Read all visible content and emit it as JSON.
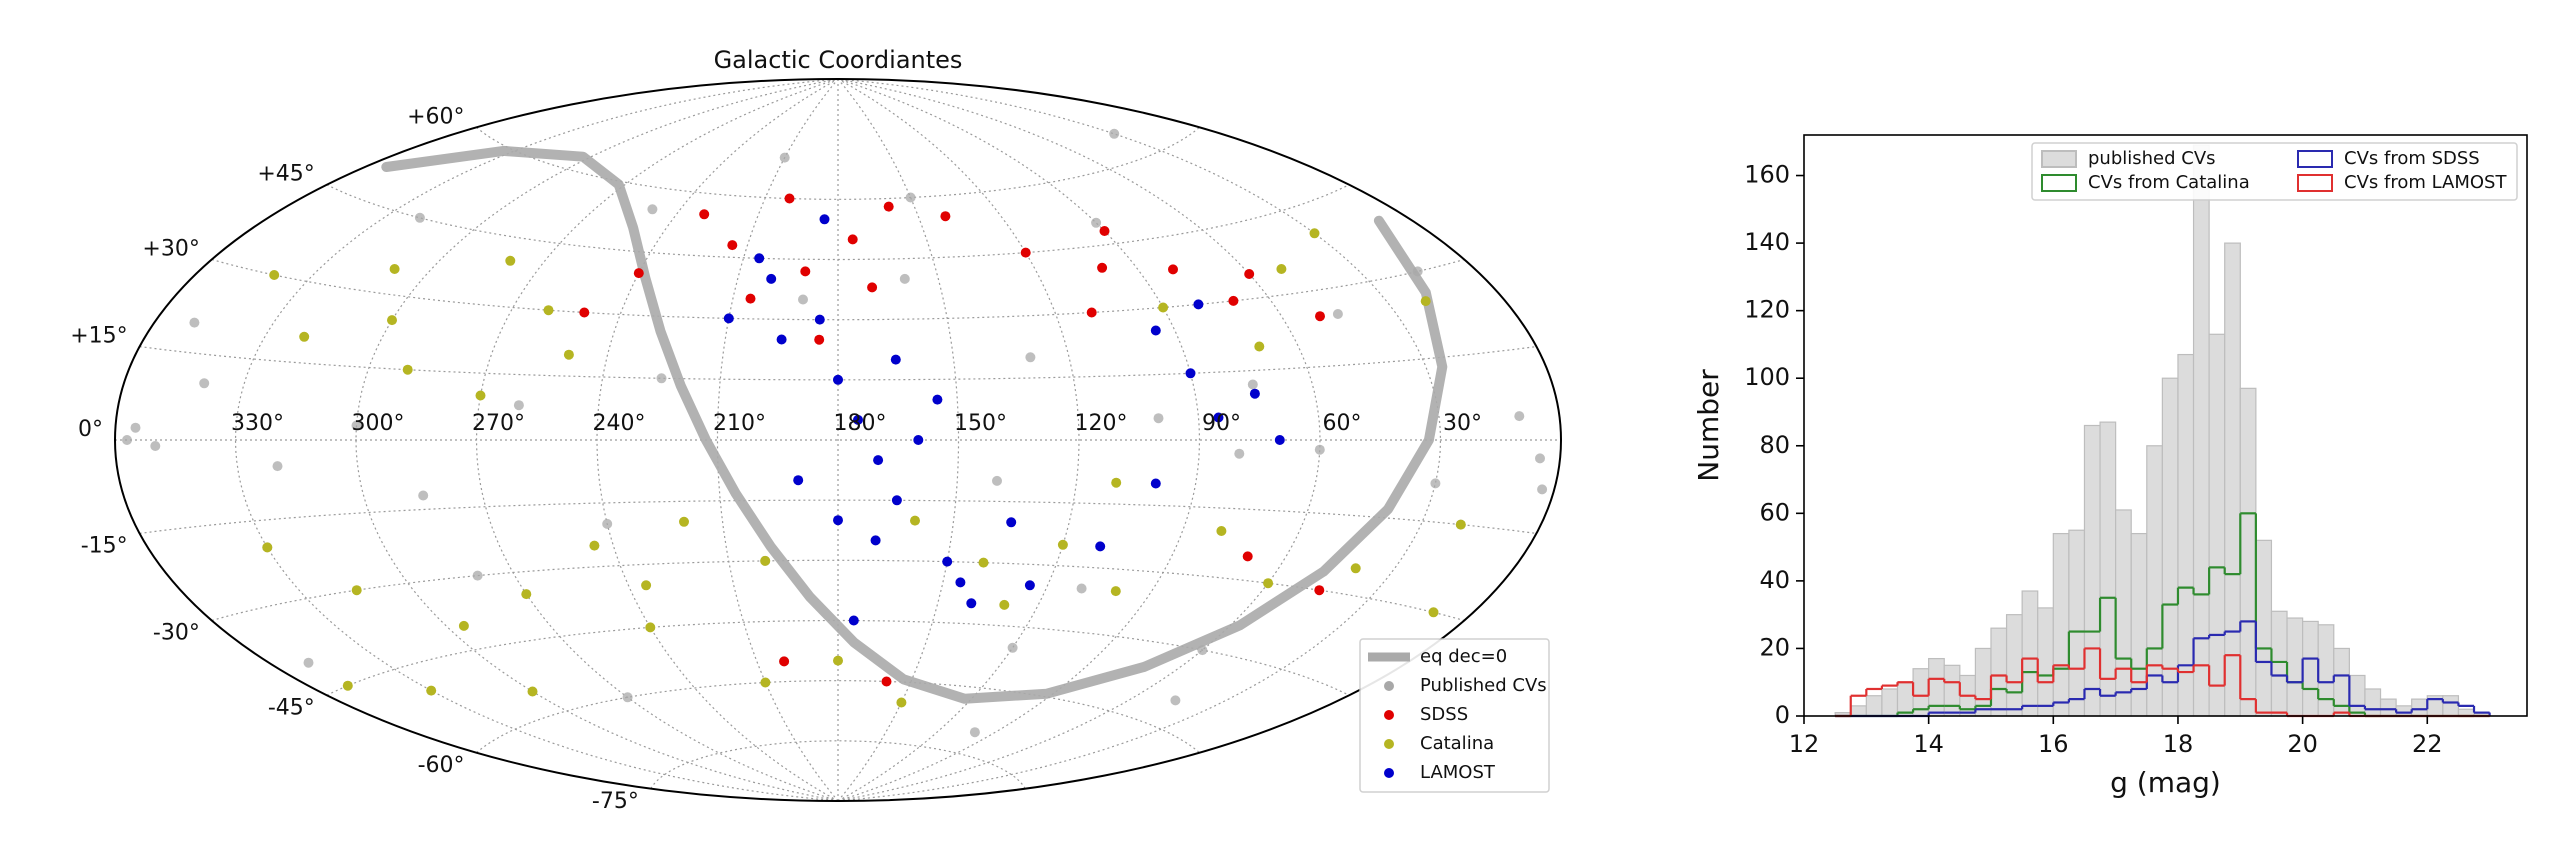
{
  "chart_data": [
    {
      "type": "scatter",
      "projection": "aitoff",
      "title": "Galactic Coordiantes",
      "grid": true,
      "legend": "lower right",
      "xticks": [
        {
          "value": 330,
          "label": "330°"
        },
        {
          "value": 300,
          "label": "300°"
        },
        {
          "value": 270,
          "label": "270°"
        },
        {
          "value": 240,
          "label": "240°"
        },
        {
          "value": 210,
          "label": "210°"
        },
        {
          "value": 180,
          "label": "180°"
        },
        {
          "value": 150,
          "label": "150°"
        },
        {
          "value": 120,
          "label": "120°"
        },
        {
          "value": 90,
          "label": "90°"
        },
        {
          "value": 60,
          "label": "60°"
        },
        {
          "value": 30,
          "label": "30°"
        }
      ],
      "yticks": [
        {
          "value": 60,
          "label": "+60°"
        },
        {
          "value": 45,
          "label": "+45°"
        },
        {
          "value": 30,
          "label": "+30°"
        },
        {
          "value": 15,
          "label": "+15°"
        },
        {
          "value": 0,
          "label": "0°"
        },
        {
          "value": -15,
          "label": "-15°"
        },
        {
          "value": -30,
          "label": "-30°"
        },
        {
          "value": -45,
          "label": "-45°"
        },
        {
          "value": -60,
          "label": "-60°"
        },
        {
          "value": -75,
          "label": "-75°"
        }
      ],
      "series": [
        {
          "name": "eq dec=0",
          "style": "line",
          "color": "#aaaaaa",
          "x": [
            8.4,
            18.1,
            25.9,
            32.9,
            39.9,
            47.7,
            57.4,
            71.2,
            92.4,
            122.9,
            153.4,
            174.6,
            188.4,
            198.1,
            205.9,
            212.9,
            219.9,
            227.7,
            237.4,
            251.2,
            272.4,
            302.9,
            333.4,
            354.6
          ],
          "y": [
            39,
            26.4,
            13.3,
            0,
            -13.3,
            -26.4,
            -39,
            -50.4,
            -59.3,
            -62.9,
            -59.3,
            -50.4,
            -39,
            -26.4,
            -13.3,
            0,
            13.3,
            26.4,
            39,
            50.4,
            59.3,
            62.9,
            59.3,
            50.4
          ]
        },
        {
          "name": "Published CVs",
          "style": "points",
          "color": "#a8a8a8",
          "x": [
            355,
            5,
            350,
            10,
            3,
            357,
            340,
            320,
            300,
            285,
            260,
            240,
            225,
            200,
            190,
            170,
            160,
            140,
            130,
            110,
            100,
            80,
            75,
            60,
            45,
            30,
            20,
            15,
            350,
            320,
            280,
            250,
            200,
            150,
            120,
            90,
            60,
            30,
            270,
            210,
            100,
            45,
            330,
            350
          ],
          "y": [
            2,
            -3,
            -1,
            4,
            -8,
            0,
            10,
            -5,
            3,
            -12,
            8,
            -20,
            15,
            -30,
            35,
            -25,
            40,
            -10,
            20,
            -35,
            5,
            -3,
            12,
            -2,
            25,
            -8,
            -15,
            30,
            -40,
            45,
            -30,
            55,
            -55,
            60,
            -50,
            50,
            -45,
            65,
            -60,
            70,
            -70,
            -55,
            -20,
            20
          ]
        },
        {
          "name": "SDSS",
          "style": "points",
          "color": "#e00000",
          "x": [
            230,
            215,
            200,
            190,
            175,
            160,
            240,
            250,
            205,
            185,
            170,
            140,
            120,
            100,
            80,
            70,
            110,
            90,
            60,
            50,
            200,
            160,
            70,
            45
          ],
          "y": [
            55,
            48,
            60,
            42,
            50,
            58,
            40,
            30,
            35,
            25,
            38,
            55,
            45,
            40,
            38,
            30,
            30,
            48,
            35,
            25,
            -55,
            -60,
            -25,
            -30
          ]
        },
        {
          "name": "Catalina",
          "style": "points",
          "color": "#b5b522",
          "x": [
            340,
            320,
            310,
            300,
            290,
            280,
            270,
            260,
            250,
            330,
            315,
            295,
            245,
            235,
            220,
            200,
            160,
            140,
            120,
            100,
            80,
            60,
            40,
            20,
            350,
            330,
            300,
            270,
            240,
            210,
            180,
            150,
            130,
            110,
            90,
            70,
            50,
            30,
            20,
            10
          ],
          "y": [
            30,
            20,
            35,
            25,
            15,
            40,
            10,
            30,
            20,
            -20,
            -30,
            -40,
            -25,
            -35,
            -20,
            -30,
            -20,
            -30,
            -25,
            -35,
            -20,
            -30,
            -25,
            -15,
            -45,
            -50,
            -55,
            -35,
            -45,
            -60,
            -55,
            -65,
            -40,
            -10,
            30,
            20,
            35,
            40,
            25,
            -30
          ]
        },
        {
          "name": "LAMOST",
          "style": "points",
          "color": "#0000cc",
          "x": [
            200,
            195,
            185,
            180,
            175,
            170,
            165,
            190,
            180,
            170,
            160,
            155,
            150,
            145,
            140,
            135,
            205,
            210,
            185,
            175,
            165,
            95,
            90,
            85,
            80,
            75,
            70,
            100,
            110,
            125
          ],
          "y": [
            40,
            25,
            30,
            15,
            5,
            -5,
            -15,
            -10,
            -20,
            -25,
            0,
            10,
            -30,
            -35,
            -40,
            -20,
            45,
            30,
            55,
            -45,
            20,
            25,
            15,
            5,
            30,
            10,
            0,
            -10,
            -25,
            -35
          ]
        }
      ]
    },
    {
      "type": "histogram",
      "xlabel": "g (mag)",
      "ylabel": "Number",
      "legend": "upper right",
      "xlim": [
        12,
        23.6
      ],
      "ylim": [
        0,
        172
      ],
      "xticks": [
        12,
        14,
        16,
        18,
        20,
        22
      ],
      "yticks": [
        0,
        20,
        40,
        60,
        80,
        100,
        120,
        140,
        160
      ],
      "bins": [
        12.5,
        12.75,
        13,
        13.25,
        13.5,
        13.75,
        14,
        14.25,
        14.5,
        14.75,
        15,
        15.25,
        15.5,
        15.75,
        16,
        16.25,
        16.5,
        16.75,
        17,
        17.25,
        17.5,
        17.75,
        18,
        18.25,
        18.5,
        18.75,
        19,
        19.25,
        19.5,
        19.75,
        20,
        20.25,
        20.5,
        20.75,
        21,
        21.25,
        21.5,
        21.75,
        22,
        22.25,
        22.5,
        22.75,
        23
      ],
      "series": [
        {
          "name": "published CVs",
          "style": "bar",
          "color": "#dcdcdc",
          "values": [
            1,
            3,
            6,
            8,
            10,
            14,
            17,
            15,
            12,
            20,
            26,
            30,
            37,
            32,
            54,
            55,
            86,
            87,
            61,
            54,
            80,
            100,
            107,
            169,
            113,
            140,
            97,
            52,
            31,
            29,
            28,
            27,
            20,
            12,
            8,
            5,
            3,
            5,
            6,
            6,
            2,
            1
          ]
        },
        {
          "name": "CVs from Catalina",
          "style": "step",
          "color": "#2e8b2e",
          "values": [
            0,
            0,
            0,
            0,
            1,
            2,
            3,
            3,
            2,
            3,
            8,
            7,
            13,
            12,
            14,
            25,
            25,
            35,
            17,
            14,
            20,
            33,
            38,
            36,
            44,
            42,
            60,
            20,
            16,
            10,
            8,
            5,
            3,
            1,
            0,
            0,
            0,
            0,
            0,
            0,
            0,
            0
          ]
        },
        {
          "name": "CVs from SDSS",
          "style": "step",
          "color": "#2a2ab0",
          "values": [
            0,
            0,
            0,
            0,
            0,
            0,
            1,
            1,
            1,
            2,
            2,
            2,
            3,
            3,
            4,
            5,
            8,
            6,
            7,
            8,
            12,
            10,
            15,
            23,
            24,
            25,
            28,
            16,
            12,
            10,
            17,
            10,
            12,
            3,
            2,
            2,
            1,
            2,
            5,
            4,
            3,
            1
          ]
        },
        {
          "name": "CVs from LAMOST",
          "style": "step",
          "color": "#e03030",
          "values": [
            0,
            6,
            8,
            9,
            10,
            6,
            11,
            10,
            6,
            5,
            12,
            10,
            17,
            10,
            15,
            14,
            20,
            11,
            14,
            10,
            15,
            14,
            13,
            15,
            9,
            18,
            5,
            1,
            1,
            0,
            0,
            0,
            1,
            0,
            0,
            0,
            0,
            0,
            0,
            0,
            0,
            0
          ]
        }
      ]
    }
  ]
}
